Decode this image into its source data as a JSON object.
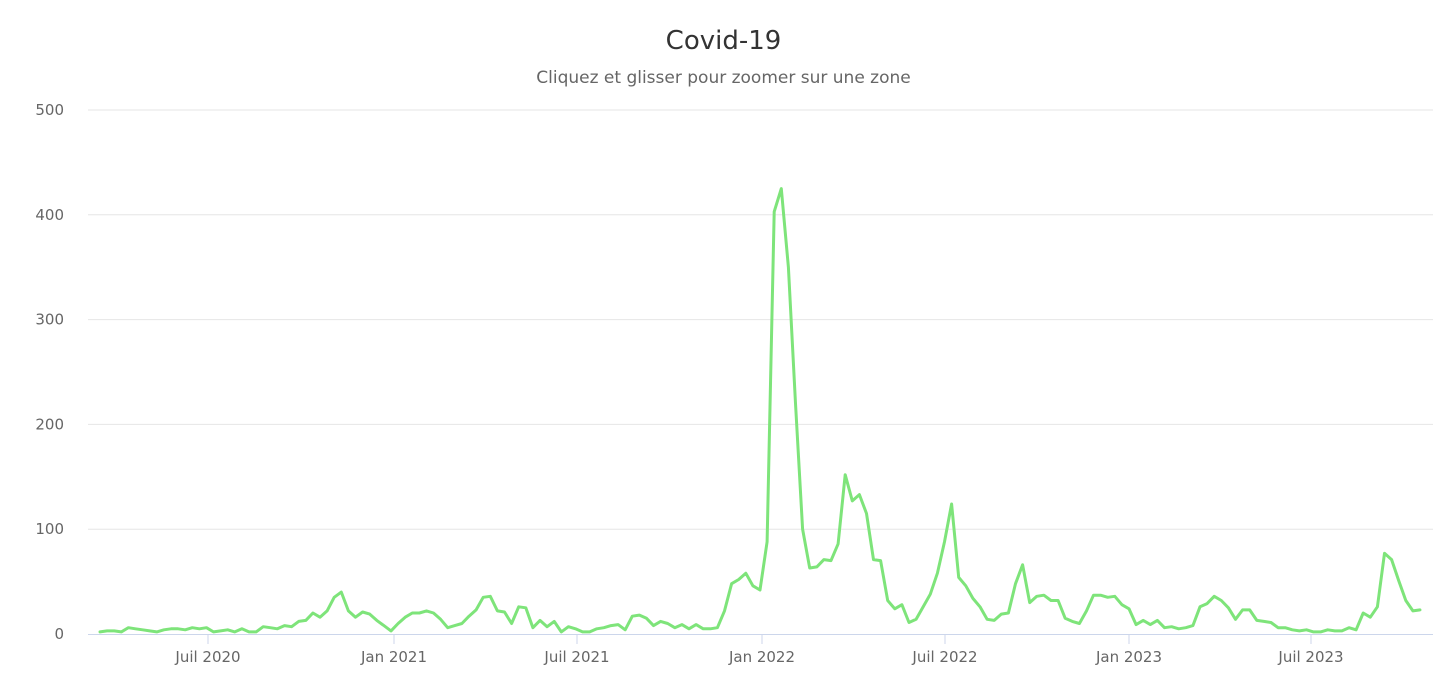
{
  "chart": {
    "title": "Covid-19",
    "subtitle": "Cliquez et glisser pour zoomer sur une zone",
    "line_color": "#7ee47a",
    "grid_color": "#e6e6e6",
    "axis_color": "#ccd6eb"
  },
  "chart_data": {
    "type": "line",
    "title": "Covid-19",
    "subtitle": "Cliquez et glisser pour zoomer sur une zone",
    "xlabel": "",
    "ylabel": "",
    "ylim": [
      0,
      500
    ],
    "yticks": [
      0,
      100,
      200,
      300,
      400,
      500
    ],
    "xticks": [
      "Juil 2020",
      "Jan 2021",
      "Juil 2021",
      "Jan 2022",
      "Juil 2022",
      "Jan 2023",
      "Juil 2023"
    ],
    "grid": true,
    "legend": false,
    "series": [
      {
        "name": "Covid-19",
        "frequency": "weekly",
        "x_start": "2020-03",
        "x_end": "2023-11",
        "values": [
          2,
          3,
          3,
          2,
          6,
          5,
          4,
          3,
          2,
          4,
          5,
          5,
          4,
          6,
          5,
          6,
          2,
          3,
          4,
          2,
          5,
          2,
          2,
          7,
          6,
          5,
          8,
          7,
          12,
          13,
          20,
          16,
          22,
          35,
          40,
          22,
          16,
          21,
          19,
          13,
          8,
          3,
          10,
          16,
          20,
          20,
          22,
          20,
          14,
          6,
          8,
          10,
          17,
          23,
          35,
          36,
          22,
          21,
          10,
          26,
          25,
          6,
          13,
          7,
          12,
          2,
          7,
          5,
          2,
          2,
          5,
          6,
          8,
          9,
          4,
          17,
          18,
          15,
          8,
          12,
          10,
          6,
          9,
          5,
          9,
          5,
          5,
          6,
          22,
          48,
          52,
          58,
          46,
          42,
          88,
          403,
          425,
          350,
          220,
          100,
          63,
          64,
          71,
          70,
          86,
          152,
          127,
          133,
          115,
          71,
          70,
          32,
          24,
          28,
          11,
          14,
          26,
          38,
          58,
          88,
          124,
          54,
          46,
          34,
          26,
          14,
          13,
          19,
          20,
          48,
          66,
          30,
          36,
          37,
          32,
          32,
          15,
          12,
          10,
          22,
          37,
          37,
          35,
          36,
          28,
          24,
          9,
          13,
          9,
          13,
          6,
          7,
          5,
          6,
          8,
          26,
          29,
          36,
          32,
          25,
          14,
          23,
          23,
          13,
          12,
          11,
          6,
          6,
          4,
          3,
          4,
          2,
          2,
          4,
          3,
          3,
          6,
          4,
          20,
          16,
          26,
          77,
          71,
          51,
          32,
          22,
          23
        ]
      }
    ]
  }
}
